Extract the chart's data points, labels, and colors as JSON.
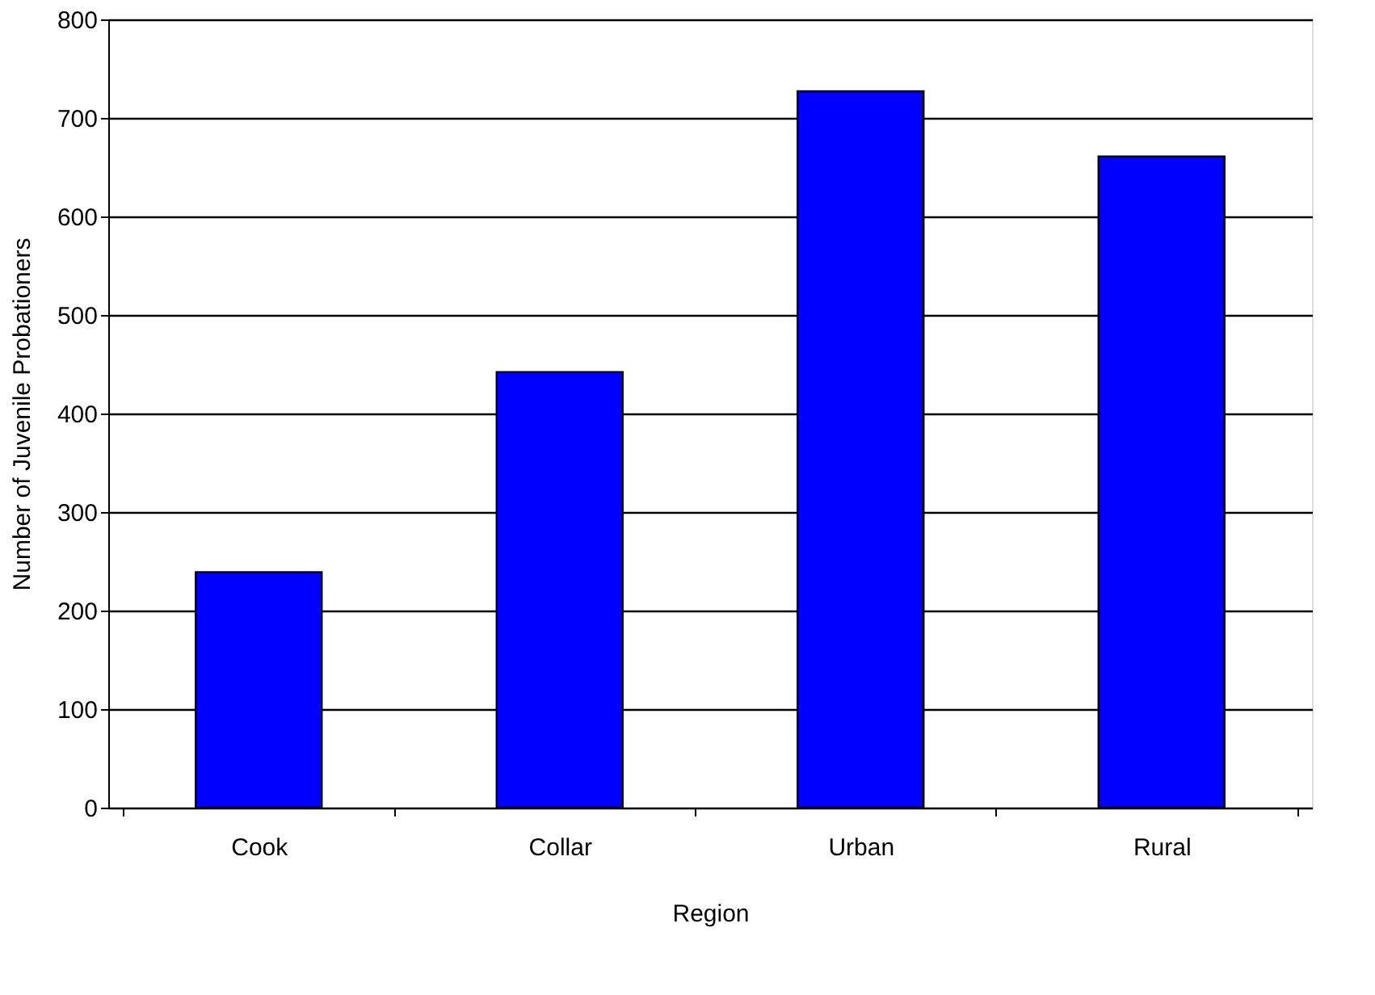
{
  "chart_data": {
    "type": "bar",
    "xlabel": "Region",
    "ylabel": "Number of Juvenile Probationers",
    "categories": [
      "Cook",
      "Collar",
      "Urban",
      "Rural"
    ],
    "values": [
      239,
      442,
      727,
      661
    ],
    "color": "#0000ff",
    "ylim": [
      0,
      800
    ],
    "yticks": [
      0,
      100,
      200,
      300,
      400,
      500,
      600,
      700,
      800
    ],
    "grid": "y"
  }
}
